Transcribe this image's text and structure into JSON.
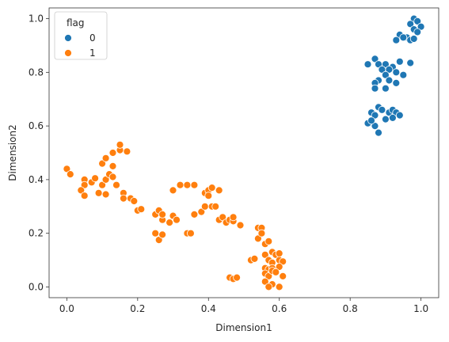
{
  "chart_data": {
    "type": "scatter",
    "title": "",
    "xlabel": "Dimension1",
    "ylabel": "Dimension2",
    "xlim": [
      -0.05,
      1.05
    ],
    "ylim": [
      -0.04,
      1.04
    ],
    "xticks": [
      "0.0",
      "0.2",
      "0.4",
      "0.6",
      "0.8",
      "1.0"
    ],
    "yticks": [
      "0.0",
      "0.2",
      "0.4",
      "0.6",
      "0.8",
      "1.0"
    ],
    "grid": false,
    "legend": {
      "title": "flag",
      "position": "top-left"
    },
    "series": [
      {
        "name": "0",
        "color": "#1f77b4",
        "points": [
          [
            0.98,
            1.0
          ],
          [
            0.99,
            0.99
          ],
          [
            0.97,
            0.98
          ],
          [
            1.0,
            0.97
          ],
          [
            0.98,
            0.96
          ],
          [
            0.99,
            0.95
          ],
          [
            0.94,
            0.94
          ],
          [
            0.96,
            0.93
          ],
          [
            0.93,
            0.92
          ],
          [
            0.97,
            0.92
          ],
          [
            0.98,
            0.925
          ],
          [
            0.95,
            0.93
          ],
          [
            0.87,
            0.85
          ],
          [
            0.85,
            0.83
          ],
          [
            0.88,
            0.83
          ],
          [
            0.9,
            0.83
          ],
          [
            0.92,
            0.82
          ],
          [
            0.94,
            0.84
          ],
          [
            0.97,
            0.835
          ],
          [
            0.89,
            0.81
          ],
          [
            0.91,
            0.81
          ],
          [
            0.93,
            0.8
          ],
          [
            0.9,
            0.79
          ],
          [
            0.95,
            0.79
          ],
          [
            0.88,
            0.77
          ],
          [
            0.91,
            0.77
          ],
          [
            0.87,
            0.76
          ],
          [
            0.93,
            0.76
          ],
          [
            0.87,
            0.74
          ],
          [
            0.9,
            0.74
          ],
          [
            0.86,
            0.65
          ],
          [
            0.88,
            0.67
          ],
          [
            0.89,
            0.66
          ],
          [
            0.87,
            0.64
          ],
          [
            0.91,
            0.65
          ],
          [
            0.92,
            0.66
          ],
          [
            0.93,
            0.65
          ],
          [
            0.94,
            0.64
          ],
          [
            0.85,
            0.61
          ],
          [
            0.87,
            0.6
          ],
          [
            0.9,
            0.625
          ],
          [
            0.92,
            0.63
          ],
          [
            0.86,
            0.62
          ],
          [
            0.88,
            0.575
          ]
        ]
      },
      {
        "name": "1",
        "color": "#ff7f0e",
        "points": [
          [
            0.0,
            0.44
          ],
          [
            0.01,
            0.42
          ],
          [
            0.05,
            0.4
          ],
          [
            0.05,
            0.38
          ],
          [
            0.04,
            0.36
          ],
          [
            0.05,
            0.34
          ],
          [
            0.07,
            0.39
          ],
          [
            0.08,
            0.405
          ],
          [
            0.09,
            0.35
          ],
          [
            0.1,
            0.38
          ],
          [
            0.11,
            0.4
          ],
          [
            0.11,
            0.345
          ],
          [
            0.12,
            0.42
          ],
          [
            0.13,
            0.41
          ],
          [
            0.14,
            0.38
          ],
          [
            0.16,
            0.35
          ],
          [
            0.16,
            0.33
          ],
          [
            0.18,
            0.33
          ],
          [
            0.19,
            0.32
          ],
          [
            0.2,
            0.285
          ],
          [
            0.21,
            0.29
          ],
          [
            0.1,
            0.46
          ],
          [
            0.11,
            0.48
          ],
          [
            0.13,
            0.45
          ],
          [
            0.13,
            0.5
          ],
          [
            0.15,
            0.51
          ],
          [
            0.15,
            0.53
          ],
          [
            0.17,
            0.505
          ],
          [
            0.25,
            0.27
          ],
          [
            0.26,
            0.285
          ],
          [
            0.27,
            0.25
          ],
          [
            0.27,
            0.27
          ],
          [
            0.25,
            0.2
          ],
          [
            0.26,
            0.175
          ],
          [
            0.27,
            0.195
          ],
          [
            0.29,
            0.24
          ],
          [
            0.3,
            0.265
          ],
          [
            0.31,
            0.25
          ],
          [
            0.3,
            0.36
          ],
          [
            0.32,
            0.38
          ],
          [
            0.34,
            0.38
          ],
          [
            0.36,
            0.38
          ],
          [
            0.36,
            0.27
          ],
          [
            0.34,
            0.2
          ],
          [
            0.35,
            0.2
          ],
          [
            0.38,
            0.28
          ],
          [
            0.39,
            0.3
          ],
          [
            0.39,
            0.35
          ],
          [
            0.4,
            0.36
          ],
          [
            0.41,
            0.37
          ],
          [
            0.4,
            0.34
          ],
          [
            0.41,
            0.3
          ],
          [
            0.42,
            0.3
          ],
          [
            0.43,
            0.25
          ],
          [
            0.44,
            0.26
          ],
          [
            0.45,
            0.24
          ],
          [
            0.46,
            0.25
          ],
          [
            0.47,
            0.245
          ],
          [
            0.47,
            0.26
          ],
          [
            0.49,
            0.23
          ],
          [
            0.43,
            0.36
          ],
          [
            0.54,
            0.22
          ],
          [
            0.55,
            0.22
          ],
          [
            0.54,
            0.18
          ],
          [
            0.55,
            0.2
          ],
          [
            0.56,
            0.16
          ],
          [
            0.57,
            0.17
          ],
          [
            0.52,
            0.1
          ],
          [
            0.53,
            0.105
          ],
          [
            0.56,
            0.12
          ],
          [
            0.58,
            0.13
          ],
          [
            0.59,
            0.12
          ],
          [
            0.6,
            0.125
          ],
          [
            0.57,
            0.1
          ],
          [
            0.58,
            0.09
          ],
          [
            0.6,
            0.1
          ],
          [
            0.61,
            0.095
          ],
          [
            0.56,
            0.07
          ],
          [
            0.57,
            0.065
          ],
          [
            0.58,
            0.07
          ],
          [
            0.6,
            0.075
          ],
          [
            0.56,
            0.05
          ],
          [
            0.57,
            0.04
          ],
          [
            0.58,
            0.06
          ],
          [
            0.59,
            0.055
          ],
          [
            0.61,
            0.04
          ],
          [
            0.56,
            0.02
          ],
          [
            0.58,
            0.01
          ],
          [
            0.57,
            0.0
          ],
          [
            0.6,
            0.0
          ],
          [
            0.46,
            0.035
          ],
          [
            0.47,
            0.03
          ],
          [
            0.48,
            0.035
          ]
        ]
      }
    ]
  }
}
